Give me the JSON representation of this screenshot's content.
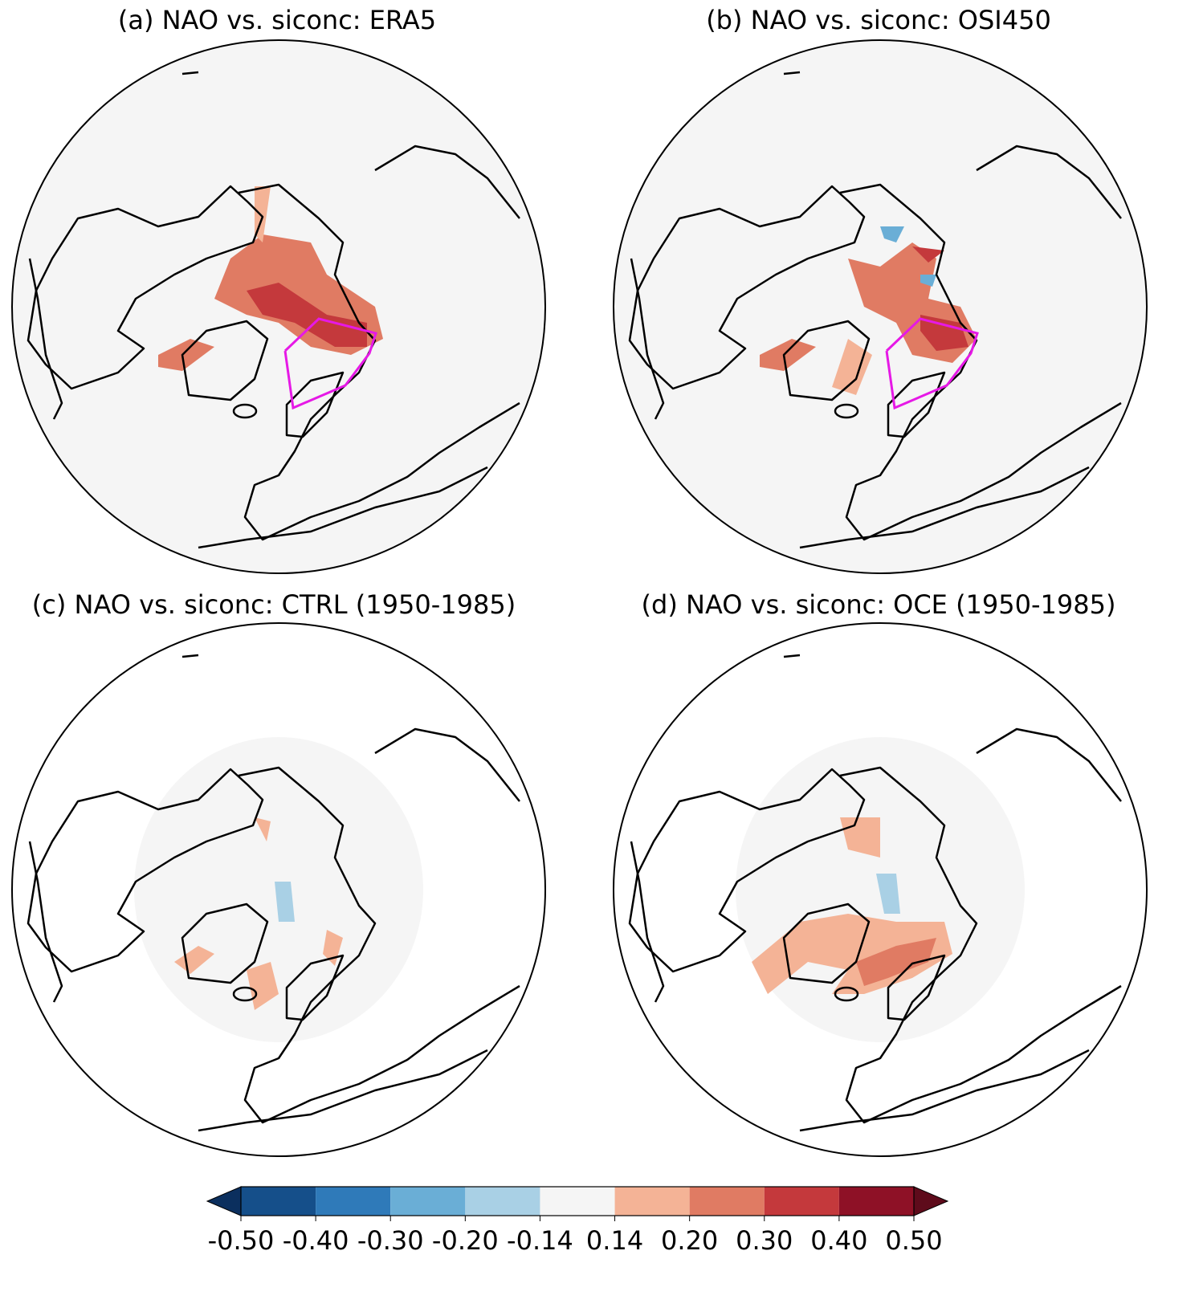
{
  "panels": [
    {
      "title": "(a) NAO vs. siconc: ERA5"
    },
    {
      "title": "(b) NAO vs. siconc: OSI450"
    },
    {
      "title": "(c) NAO vs. siconc: CTRL (1950-1985)"
    },
    {
      "title": "(d) NAO vs. siconc: OCE (1950-1985)"
    }
  ],
  "colorbar": {
    "ticks": [
      {
        "value": -0.5,
        "label": "-0.50"
      },
      {
        "value": -0.4,
        "label": "-0.40"
      },
      {
        "value": -0.3,
        "label": "-0.30"
      },
      {
        "value": -0.2,
        "label": "-0.20"
      },
      {
        "value": -0.14,
        "label": "-0.14"
      },
      {
        "value": 0.14,
        "label": "0.14"
      },
      {
        "value": 0.2,
        "label": "0.20"
      },
      {
        "value": 0.3,
        "label": "0.30"
      },
      {
        "value": 0.4,
        "label": "0.40"
      },
      {
        "value": 0.5,
        "label": "0.50"
      }
    ],
    "colors": [
      "#154f8a",
      "#2f7ab9",
      "#6aaed6",
      "#a9d0e5",
      "#f5f5f5",
      "#f4b396",
      "#e07b63",
      "#c4393c",
      "#8e1126"
    ],
    "under_color": "#0b2f5e",
    "over_color": "#5e0b1b"
  }
}
